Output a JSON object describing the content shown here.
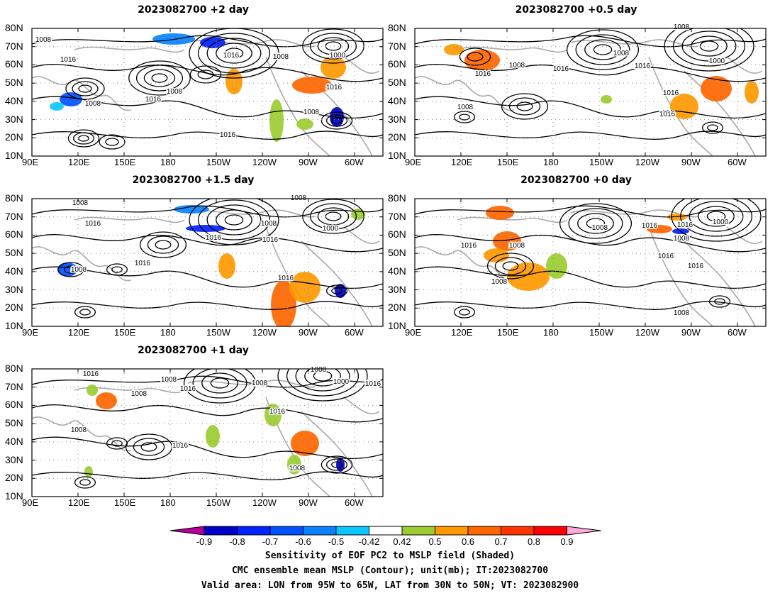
{
  "panels": [
    {
      "title": "2023082700  +2  day"
    },
    {
      "title": "2023082700  +0.5  day"
    },
    {
      "title": "2023082700  +1.5  day"
    },
    {
      "title": "2023082700  +0  day"
    },
    {
      "title": "2023082700  +1  day"
    }
  ],
  "lat_ticks": [
    "80N",
    "70N",
    "60N",
    "50N",
    "40N",
    "30N",
    "20N",
    "10N"
  ],
  "lon_ticks": [
    "90E",
    "120E",
    "150E",
    "180",
    "150W",
    "120W",
    "90W",
    "60W"
  ],
  "contour_labels": [
    "1016",
    "1008",
    "1000"
  ],
  "colorbar": {
    "labels": [
      "-0.9",
      "-0.8",
      "-0.7",
      "-0.6",
      "-0.5",
      "-0.42",
      "0.42",
      "0.5",
      "0.6",
      "0.7",
      "0.8",
      "0.9"
    ],
    "colors": [
      "#b30099",
      "#0000c8",
      "#0022ff",
      "#0050ff",
      "#0a82ff",
      "#0ac8ff",
      "#ffffff",
      "#9bcd32",
      "#ff9900",
      "#ff6600",
      "#ff3300",
      "#ff0000",
      "#ffaadd"
    ]
  },
  "caption": {
    "line1": "Sensitivity of EOF PC2 to MSLP field (Shaded)",
    "line2": "CMC ensemble mean MSLP (Contour); unit(mb); IT:2023082700",
    "line3": "Valid area: LON from 95W to 65W, LAT from 30N to 50N; VT: 2023082900"
  }
}
